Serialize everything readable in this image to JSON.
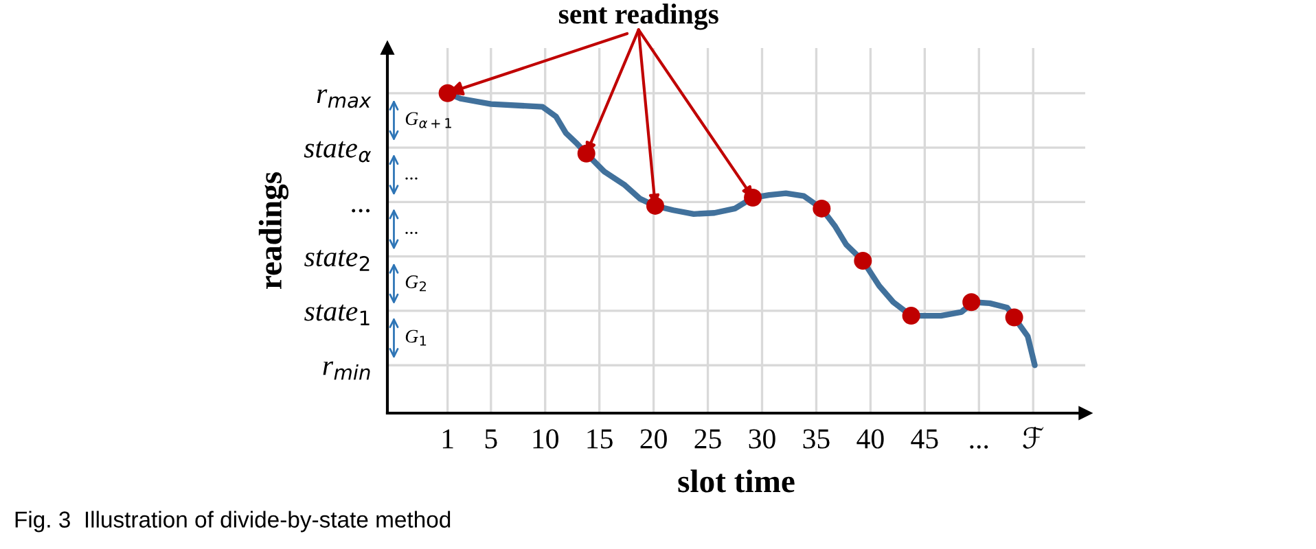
{
  "chart_data": {
    "type": "line",
    "xlabel": "slot time",
    "ylabel": "readings",
    "xlim": [
      -4.55,
      59.8
    ],
    "ylim": [
      -0.88,
      5.83
    ],
    "xticks": [
      1,
      5,
      10,
      15,
      20,
      25,
      30,
      35,
      40,
      45,
      {
        "value": 50,
        "label": "..."
      },
      {
        "value": 55,
        "label": "ℱ"
      }
    ],
    "yticks": [
      {
        "value": 0,
        "label": "r$_{min}$"
      },
      {
        "value": 1,
        "label": "state$_{1}$"
      },
      {
        "value": 2,
        "label": "state$_{2}$"
      },
      {
        "value": 3,
        "label": "..."
      },
      {
        "value": 4,
        "label": "state$_{α}$"
      },
      {
        "value": 5,
        "label": "r$_{max}$"
      }
    ],
    "grid": true,
    "series": [
      {
        "color": "#41719c",
        "x": [
          1,
          2.2,
          5,
          9.75,
          11,
          11.9,
          12.95,
          13.8,
          15.45,
          17.35,
          18.75,
          20.15,
          21.8,
          23.7,
          25.6,
          27.5,
          29.15,
          30.65,
          32.2,
          33.85,
          35.5,
          36.75,
          37.75,
          39.3,
          40.8,
          42.1,
          43.75,
          46.5,
          48.4,
          49.45,
          51,
          52.6,
          53.25,
          54.5,
          55.15
        ],
        "values": [
          5,
          4.9,
          4.8,
          4.75,
          4.57,
          4.27,
          4.07,
          3.89,
          3.56,
          3.31,
          3.06,
          2.93,
          2.85,
          2.78,
          2.8,
          2.88,
          3.08,
          3.13,
          3.16,
          3.11,
          2.88,
          2.55,
          2.22,
          1.92,
          1.46,
          1.16,
          0.91,
          0.91,
          0.98,
          1.16,
          1.14,
          1.06,
          0.88,
          0.53,
          0
        ]
      },
      {
        "type": "scatter",
        "color": "#c00000",
        "marker": "circle",
        "x": [
          1,
          13.8,
          20.15,
          29.15,
          35.5,
          39.3,
          43.75,
          49.3,
          53.25
        ],
        "values": [
          5,
          3.89,
          2.93,
          3.08,
          2.88,
          1.92,
          0.91,
          1.16,
          0.88
        ]
      }
    ],
    "annotations": [
      {
        "text": "sent readings",
        "x": 1,
        "y": 5
      },
      "G$_{α+1}$",
      "...",
      "...",
      "G$_{2}$",
      "G$_{1}$",
      "Fig. 3  Illustration of divide-by-state method"
    ]
  }
}
